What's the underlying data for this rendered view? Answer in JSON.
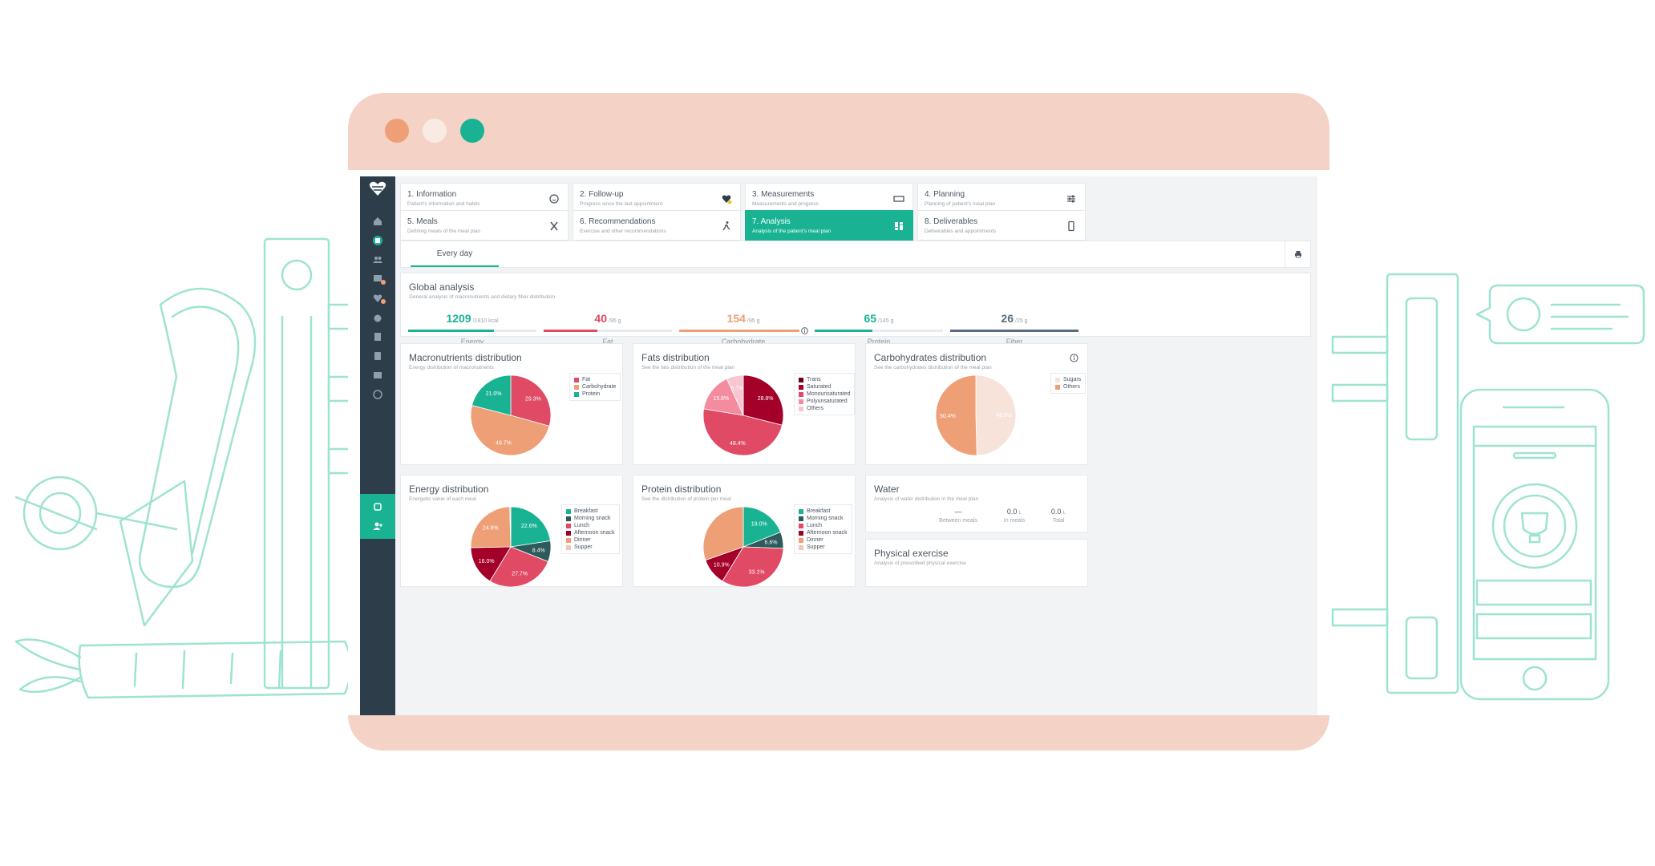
{
  "steps": [
    {
      "title": "1. Information",
      "sub": "Patient's information and habits",
      "icon": "face-icon"
    },
    {
      "title": "2. Follow-up",
      "sub": "Progress since the last appointment",
      "icon": "heart-icon"
    },
    {
      "title": "3. Measurements",
      "sub": "Measurements and progress",
      "icon": "ruler-icon"
    },
    {
      "title": "4. Planning",
      "sub": "Planning of patient's meal plan",
      "icon": "sliders-icon"
    },
    {
      "title": "5. Meals",
      "sub": "Defining meals of the meal plan",
      "icon": "utensils-icon"
    },
    {
      "title": "6. Recommendations",
      "sub": "Exercise and other recommendations",
      "icon": "running-icon"
    },
    {
      "title": "7. Analysis",
      "sub": "Analysis of the patient's meal plan",
      "icon": "dashboard-icon"
    },
    {
      "title": "8. Deliverables",
      "sub": "Deliverables and appointments",
      "icon": "phone-icon"
    }
  ],
  "tab": {
    "label": "Every day"
  },
  "global": {
    "title": "Global analysis",
    "sub": "General analysis of macronutrients and dietary fiber distribution",
    "metrics": [
      {
        "value": "1209",
        "target": "/1810 kcal",
        "label": "Energy",
        "color": "#19b394",
        "fill": 0.67
      },
      {
        "value": "40",
        "target": "/95 g",
        "label": "Fat",
        "color": "#e04a65",
        "fill": 0.42
      },
      {
        "value": "154",
        "target": "/95 g",
        "label": "Carbohydrate",
        "color": "#ee9f76",
        "fill": 1.0
      },
      {
        "value": "65",
        "target": "/145 g",
        "label": "Protein",
        "color": "#19b394",
        "fill": 0.45
      },
      {
        "value": "26",
        "target": "/25 g",
        "label": "Fiber",
        "color": "#5a6b7d",
        "fill": 1.0
      }
    ]
  },
  "cards": {
    "macro": {
      "title": "Macronutrients distribution",
      "sub": "Energy distribution of macronutrients"
    },
    "fats": {
      "title": "Fats distribution",
      "sub": "See the fats distribution of the meal plan"
    },
    "carbs": {
      "title": "Carbohydrates distribution",
      "sub": "See the carbohydrates distribution of the meal plan"
    },
    "energy": {
      "title": "Energy distribution",
      "sub": "Energetic value of each meal"
    },
    "protein": {
      "title": "Protein distribution",
      "sub": "See the distribution of protein per meal"
    },
    "water": {
      "title": "Water",
      "sub": "Analysis of water distribution in the meal plan",
      "between_value": "—",
      "between_label": "Between meals",
      "inmeals_value": "0.0",
      "inmeals_unit": "L",
      "inmeals_label": "In meals",
      "total_value": "0.0",
      "total_unit": "L",
      "total_label": "Total"
    },
    "exercise": {
      "title": "Physical exercise",
      "sub": "Analysis of prescribed physical exercise"
    }
  },
  "chart_data": [
    {
      "type": "pie",
      "id": "macro",
      "labels": [
        "Fat",
        "Carbohydrate",
        "Protein"
      ],
      "values": [
        29.3,
        49.7,
        21.0
      ],
      "colors": [
        "#e04a65",
        "#ee9f76",
        "#19b394"
      ],
      "data_labels": [
        "29.3%",
        "49.7%",
        "21.0%"
      ]
    },
    {
      "type": "pie",
      "id": "fats",
      "labels": [
        "Trans",
        "Saturated",
        "Monounsaturated",
        "Polyunsaturated",
        "Others"
      ],
      "values": [
        0,
        28.8,
        48.4,
        15.6,
        6.7
      ],
      "colors": [
        "#6b0018",
        "#a3002a",
        "#e04a65",
        "#f48ca0",
        "#f7c6d0"
      ],
      "data_labels": [
        "",
        "28.8%",
        "48.4%",
        "15.6%",
        "6.7%"
      ]
    },
    {
      "type": "pie",
      "id": "carbs",
      "labels": [
        "Sugars",
        "Others"
      ],
      "values": [
        49.6,
        50.4
      ],
      "colors": [
        "#f7e3da",
        "#ee9f76"
      ],
      "data_labels": [
        "49.6%",
        "50.4%"
      ]
    },
    {
      "type": "pie",
      "id": "energy",
      "labels": [
        "Breakfast",
        "Morning snack",
        "Lunch",
        "Afternoon snack",
        "Dinner",
        "Supper"
      ],
      "values": [
        22.6,
        8.4,
        27.7,
        16.0,
        24.9,
        0.4
      ],
      "colors": [
        "#19b394",
        "#2d5a5a",
        "#e04a65",
        "#a3002a",
        "#ee9f76",
        "#f4c6b5"
      ],
      "data_labels": [
        "22.6%",
        "8.4%",
        "27.7%",
        "16.0%",
        "24.9%",
        ""
      ]
    },
    {
      "type": "pie",
      "id": "protein",
      "labels": [
        "Breakfast",
        "Morning snack",
        "Lunch",
        "Afternoon snack",
        "Dinner",
        "Supper"
      ],
      "values": [
        19.0,
        6.6,
        33.1,
        10.9,
        30.4,
        0
      ],
      "colors": [
        "#19b394",
        "#2d5a5a",
        "#e04a65",
        "#a3002a",
        "#ee9f76",
        "#f4c6b5"
      ],
      "data_labels": [
        "19.0%",
        "6.6%",
        "33.1%",
        "10.9%",
        "",
        ""
      ]
    }
  ]
}
